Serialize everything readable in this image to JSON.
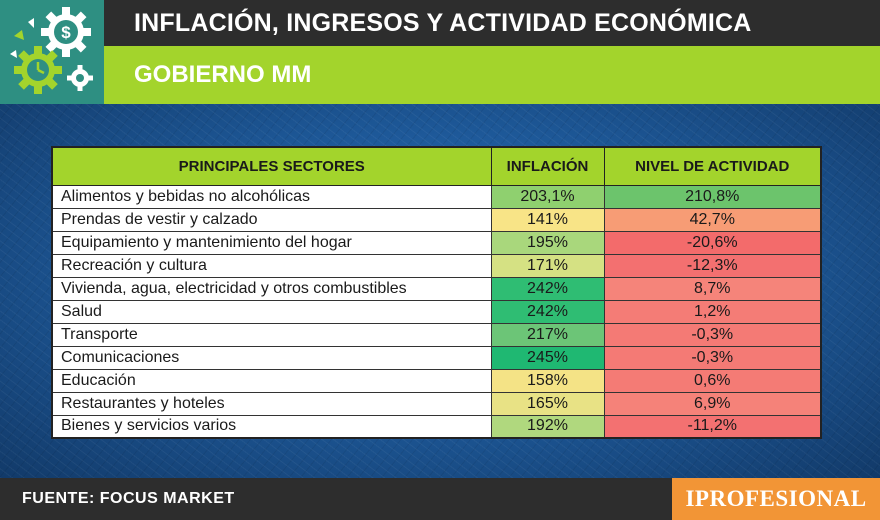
{
  "header": {
    "title": "INFLACIÓN, INGRESOS Y ACTIVIDAD ECONÓMICA",
    "subtitle": "GOBIERNO MM"
  },
  "table": {
    "columns": [
      "PRINCIPALES SECTORES",
      "INFLACIÓN",
      "NIVEL DE ACTIVIDAD"
    ],
    "rows": [
      {
        "sector": "Alimentos y bebidas no alcohólicas",
        "inflation": "203,1%",
        "activity": "210,8%",
        "inflation_color": "#8fd06f",
        "activity_color": "#6cc46c"
      },
      {
        "sector": "Prendas de vestir y calzado",
        "inflation": "141%",
        "activity": "42,7%",
        "inflation_color": "#f8e487",
        "activity_color": "#f79c75"
      },
      {
        "sector": "Equipamiento y mantenimiento del hogar",
        "inflation": "195%",
        "activity": "-20,6%",
        "inflation_color": "#a9d77c",
        "activity_color": "#f36b6b"
      },
      {
        "sector": "Recreación y cultura",
        "inflation": "171%",
        "activity": "-12,3%",
        "inflation_color": "#d5e183",
        "activity_color": "#f37070"
      },
      {
        "sector": "Vivienda, agua, electricidad y otros combustibles",
        "inflation": "242%",
        "activity": "8,7%",
        "inflation_color": "#2fbd73",
        "activity_color": "#f5847a"
      },
      {
        "sector": "Salud",
        "inflation": "242%",
        "activity": "1,2%",
        "inflation_color": "#2fbd73",
        "activity_color": "#f47c76"
      },
      {
        "sector": "Transporte",
        "inflation": "217%",
        "activity": "-0,3%",
        "inflation_color": "#6cc577",
        "activity_color": "#f47a75"
      },
      {
        "sector": "Comunicaciones",
        "inflation": "245%",
        "activity": "-0,3%",
        "inflation_color": "#1fb872",
        "activity_color": "#f47a75"
      },
      {
        "sector": "Educación",
        "inflation": "158%",
        "activity": "0,6%",
        "inflation_color": "#f4e386",
        "activity_color": "#f47b75"
      },
      {
        "sector": "Restaurantes y hoteles",
        "inflation": "165%",
        "activity": "6,9%",
        "inflation_color": "#e8e285",
        "activity_color": "#f58279"
      },
      {
        "sector": "Bienes y servicios varios",
        "inflation": "192%",
        "activity": "-11,2%",
        "inflation_color": "#b0d87e",
        "activity_color": "#f37171"
      }
    ]
  },
  "footer": {
    "source": "FUENTE: FOCUS MARKET",
    "brand": "IPROFESIONAL"
  },
  "icons": [
    "dollar-gear-icon",
    "clock-gear-icon",
    "small-gear-icon"
  ],
  "colors": {
    "header_dark": "#2d2d2d",
    "accent_green": "#a3d42c",
    "logo_teal": "#2e8f82",
    "brand_orange": "#f29536"
  }
}
